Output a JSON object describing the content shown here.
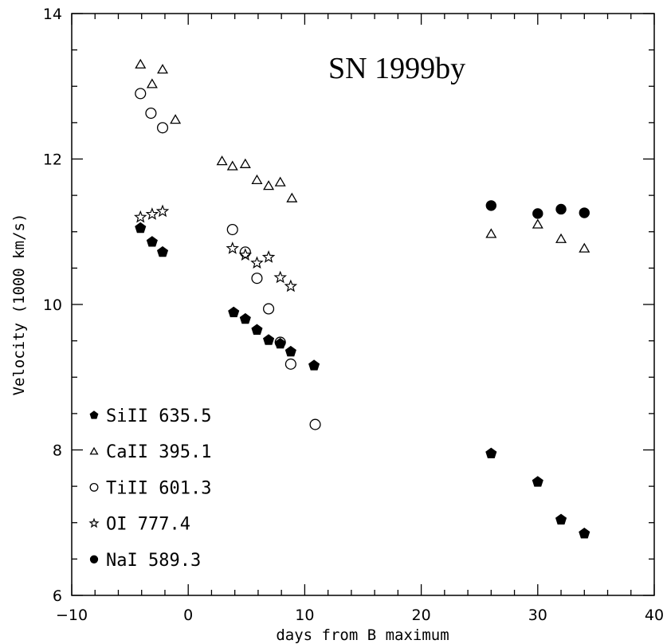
{
  "chart_data": {
    "type": "scatter",
    "title": "SN 1999by",
    "xlabel": "days from B maximum",
    "ylabel": "Velocity (1000 km/s)",
    "xlim": [
      -10,
      40
    ],
    "ylim": [
      6,
      14
    ],
    "xticks": [
      -10,
      0,
      10,
      20,
      30,
      40
    ],
    "yticks": [
      6,
      8,
      10,
      12,
      14
    ],
    "xtick_labels": [
      "−10",
      "0",
      "10",
      "20",
      "30",
      "40"
    ],
    "ytick_labels": [
      "6",
      "8",
      "10",
      "12",
      "14"
    ],
    "grid": false,
    "legend_position": "bottom-left",
    "series": [
      {
        "name": "SiII 635.5",
        "marker": "filled-pentagon",
        "points": [
          [
            -4.1,
            11.05
          ],
          [
            -3.1,
            10.86
          ],
          [
            -2.2,
            10.72
          ],
          [
            3.9,
            9.89
          ],
          [
            4.9,
            9.8
          ],
          [
            5.9,
            9.65
          ],
          [
            6.9,
            9.51
          ],
          [
            7.9,
            9.46
          ],
          [
            8.8,
            9.35
          ],
          [
            10.8,
            9.16
          ],
          [
            26.0,
            7.95
          ],
          [
            30.0,
            7.56
          ],
          [
            32.0,
            7.04
          ],
          [
            34.0,
            6.85
          ]
        ]
      },
      {
        "name": "CaII 395.1",
        "marker": "open-triangle",
        "points": [
          [
            -4.1,
            13.3
          ],
          [
            -3.1,
            13.03
          ],
          [
            -2.2,
            13.23
          ],
          [
            -1.1,
            12.54
          ],
          [
            2.9,
            11.97
          ],
          [
            3.8,
            11.9
          ],
          [
            4.9,
            11.93
          ],
          [
            5.9,
            11.71
          ],
          [
            6.9,
            11.63
          ],
          [
            7.9,
            11.68
          ],
          [
            8.9,
            11.46
          ],
          [
            26.0,
            10.97
          ],
          [
            30.0,
            11.1
          ],
          [
            32.0,
            10.9
          ],
          [
            34.0,
            10.77
          ]
        ]
      },
      {
        "name": "TiII 601.3",
        "marker": "open-circle",
        "points": [
          [
            -4.1,
            12.9
          ],
          [
            -3.2,
            12.63
          ],
          [
            -2.2,
            12.43
          ],
          [
            3.8,
            11.03
          ],
          [
            4.9,
            10.72
          ],
          [
            5.9,
            10.36
          ],
          [
            6.9,
            9.94
          ],
          [
            7.9,
            9.48
          ],
          [
            8.8,
            9.18
          ],
          [
            10.9,
            8.35
          ]
        ]
      },
      {
        "name": "OI 777.4",
        "marker": "open-star",
        "points": [
          [
            -4.1,
            11.2
          ],
          [
            -3.1,
            11.24
          ],
          [
            -2.2,
            11.28
          ],
          [
            3.8,
            10.77
          ],
          [
            4.9,
            10.68
          ],
          [
            5.9,
            10.57
          ],
          [
            6.9,
            10.65
          ],
          [
            7.9,
            10.37
          ],
          [
            8.8,
            10.25
          ]
        ]
      },
      {
        "name": "NaI 589.3",
        "marker": "filled-circle",
        "points": [
          [
            26.0,
            11.36
          ],
          [
            30.0,
            11.25
          ],
          [
            32.0,
            11.31
          ],
          [
            34.0,
            11.26
          ]
        ]
      }
    ]
  }
}
